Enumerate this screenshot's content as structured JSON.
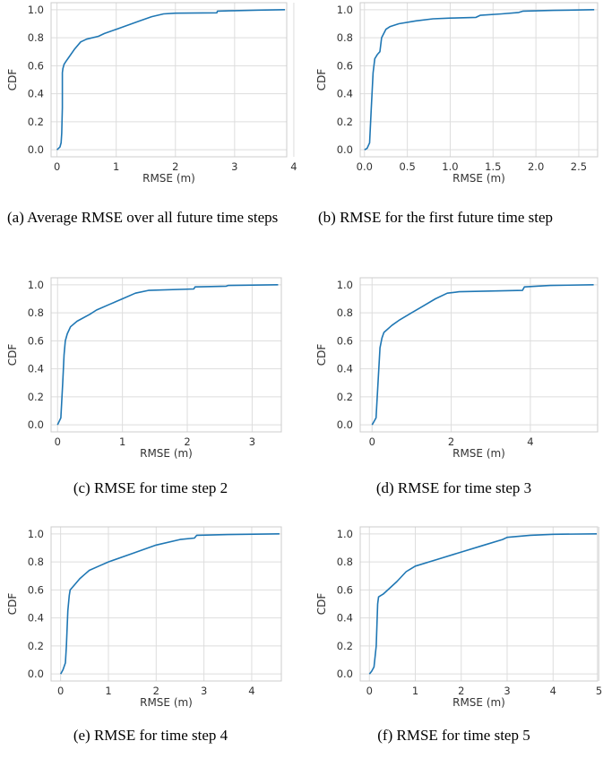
{
  "chart_data": [
    {
      "type": "line",
      "caption": "(a) Average RMSE over all future time steps",
      "xlabel": "RMSE (m)",
      "ylabel": "CDF",
      "xlim": [
        -0.1,
        3.88
      ],
      "ylim": [
        -0.05,
        1.05
      ],
      "xticks": [
        0,
        1,
        2,
        3,
        4
      ],
      "xtick_labels": [
        "0",
        "1",
        "2",
        "3",
        "4"
      ],
      "yticks": [
        0,
        0.2,
        0.4,
        0.6,
        0.8,
        1.0
      ],
      "ytick_labels": [
        "0.0",
        "0.2",
        "0.4",
        "0.6",
        "0.8",
        "1.0"
      ],
      "grid": true,
      "series": [
        {
          "color": "#1f77b4",
          "x": [
            0.0,
            0.05,
            0.07,
            0.08,
            0.09,
            0.09,
            0.1,
            0.12,
            0.15,
            0.2,
            0.3,
            0.4,
            0.5,
            0.7,
            0.8,
            1.0,
            1.2,
            1.4,
            1.6,
            1.8,
            2.0,
            2.7,
            2.71,
            3.0,
            3.4,
            3.85
          ],
          "y": [
            0.0,
            0.02,
            0.05,
            0.12,
            0.3,
            0.55,
            0.58,
            0.61,
            0.63,
            0.66,
            0.72,
            0.77,
            0.79,
            0.81,
            0.83,
            0.86,
            0.89,
            0.92,
            0.95,
            0.97,
            0.975,
            0.978,
            0.99,
            0.993,
            0.997,
            1.0
          ]
        }
      ]
    },
    {
      "type": "line",
      "caption": "(b) RMSE for the first future time step",
      "xlabel": "RMSE (m)",
      "ylabel": "CDF",
      "xlim": [
        -0.05,
        2.72
      ],
      "ylim": [
        -0.05,
        1.05
      ],
      "xticks": [
        0,
        0.5,
        1.0,
        1.5,
        2.0,
        2.5
      ],
      "xtick_labels": [
        "0.0",
        "0.5",
        "1.0",
        "1.5",
        "2.0",
        "2.5"
      ],
      "yticks": [
        0,
        0.2,
        0.4,
        0.6,
        0.8,
        1.0
      ],
      "ytick_labels": [
        "0.0",
        "0.2",
        "0.4",
        "0.6",
        "0.8",
        "1.0"
      ],
      "grid": true,
      "series": [
        {
          "color": "#1f77b4",
          "x": [
            0.0,
            0.03,
            0.06,
            0.08,
            0.1,
            0.12,
            0.15,
            0.18,
            0.2,
            0.25,
            0.3,
            0.4,
            0.6,
            0.8,
            1.0,
            1.3,
            1.35,
            1.6,
            1.8,
            1.85,
            2.2,
            2.68
          ],
          "y": [
            0.0,
            0.01,
            0.05,
            0.3,
            0.55,
            0.65,
            0.68,
            0.7,
            0.8,
            0.86,
            0.88,
            0.9,
            0.92,
            0.935,
            0.94,
            0.945,
            0.96,
            0.97,
            0.98,
            0.99,
            0.995,
            1.0
          ]
        }
      ]
    },
    {
      "type": "line",
      "caption": "(c) RMSE for time step 2",
      "xlabel": "RMSE (m)",
      "ylabel": "CDF",
      "xlim": [
        -0.1,
        3.45
      ],
      "ylim": [
        -0.05,
        1.05
      ],
      "xticks": [
        0,
        1,
        2,
        3
      ],
      "xtick_labels": [
        "0",
        "1",
        "2",
        "3"
      ],
      "yticks": [
        0,
        0.2,
        0.4,
        0.6,
        0.8,
        1.0
      ],
      "ytick_labels": [
        "0.0",
        "0.2",
        "0.4",
        "0.6",
        "0.8",
        "1.0"
      ],
      "grid": true,
      "series": [
        {
          "color": "#1f77b4",
          "x": [
            0.0,
            0.05,
            0.08,
            0.1,
            0.12,
            0.15,
            0.2,
            0.3,
            0.5,
            0.6,
            0.8,
            1.0,
            1.2,
            1.4,
            2.1,
            2.12,
            2.6,
            2.63,
            3.4
          ],
          "y": [
            0.0,
            0.05,
            0.3,
            0.5,
            0.6,
            0.65,
            0.7,
            0.74,
            0.79,
            0.82,
            0.86,
            0.9,
            0.94,
            0.96,
            0.97,
            0.985,
            0.99,
            0.995,
            1.0
          ]
        }
      ]
    },
    {
      "type": "line",
      "caption": "(d) RMSE for time step 3",
      "xlabel": "RMSE (m)",
      "ylabel": "CDF",
      "xlim": [
        -0.3,
        5.7
      ],
      "ylim": [
        -0.05,
        1.05
      ],
      "xticks": [
        0,
        2,
        4
      ],
      "xtick_labels": [
        "0",
        "2",
        "4"
      ],
      "yticks": [
        0,
        0.2,
        0.4,
        0.6,
        0.8,
        1.0
      ],
      "ytick_labels": [
        "0.0",
        "0.2",
        "0.4",
        "0.6",
        "0.8",
        "1.0"
      ],
      "grid": true,
      "series": [
        {
          "color": "#1f77b4",
          "x": [
            0.0,
            0.1,
            0.15,
            0.2,
            0.25,
            0.3,
            0.5,
            0.7,
            1.0,
            1.3,
            1.6,
            1.9,
            2.2,
            3.8,
            3.85,
            4.5,
            5.6
          ],
          "y": [
            0.0,
            0.05,
            0.3,
            0.55,
            0.62,
            0.66,
            0.71,
            0.75,
            0.8,
            0.85,
            0.9,
            0.94,
            0.95,
            0.96,
            0.985,
            0.995,
            1.0
          ]
        }
      ]
    },
    {
      "type": "line",
      "caption": "(e) RMSE for time step 4",
      "xlabel": "RMSE (m)",
      "ylabel": "CDF",
      "xlim": [
        -0.2,
        4.62
      ],
      "ylim": [
        -0.05,
        1.05
      ],
      "xticks": [
        0,
        1,
        2,
        3,
        4
      ],
      "xtick_labels": [
        "0",
        "1",
        "2",
        "3",
        "4"
      ],
      "yticks": [
        0,
        0.2,
        0.4,
        0.6,
        0.8,
        1.0
      ],
      "ytick_labels": [
        "0.0",
        "0.2",
        "0.4",
        "0.6",
        "0.8",
        "1.0"
      ],
      "grid": true,
      "series": [
        {
          "color": "#1f77b4",
          "x": [
            0.0,
            0.05,
            0.1,
            0.12,
            0.15,
            0.18,
            0.2,
            0.3,
            0.4,
            0.5,
            0.6,
            0.8,
            1.0,
            1.5,
            2.0,
            2.5,
            2.8,
            2.85,
            3.5,
            4.58
          ],
          "y": [
            0.0,
            0.03,
            0.08,
            0.2,
            0.45,
            0.56,
            0.6,
            0.64,
            0.68,
            0.71,
            0.74,
            0.77,
            0.8,
            0.86,
            0.92,
            0.96,
            0.97,
            0.99,
            0.995,
            1.0
          ]
        }
      ]
    },
    {
      "type": "line",
      "caption": "(f) RMSE for time step 5",
      "xlabel": "RMSE (m)",
      "ylabel": "CDF",
      "xlim": [
        -0.2,
        4.97
      ],
      "ylim": [
        -0.05,
        1.05
      ],
      "xticks": [
        0,
        1,
        2,
        3,
        4,
        5
      ],
      "xtick_labels": [
        "0",
        "1",
        "2",
        "3",
        "4",
        "5"
      ],
      "yticks": [
        0,
        0.2,
        0.4,
        0.6,
        0.8,
        1.0
      ],
      "ytick_labels": [
        "0.0",
        "0.2",
        "0.4",
        "0.6",
        "0.8",
        "1.0"
      ],
      "grid": true,
      "series": [
        {
          "color": "#1f77b4",
          "x": [
            0.0,
            0.05,
            0.1,
            0.15,
            0.18,
            0.2,
            0.25,
            0.3,
            0.4,
            0.6,
            0.8,
            1.0,
            1.5,
            2.0,
            2.5,
            2.9,
            3.0,
            3.5,
            4.0,
            4.95
          ],
          "y": [
            0.0,
            0.02,
            0.05,
            0.2,
            0.5,
            0.55,
            0.56,
            0.57,
            0.6,
            0.66,
            0.73,
            0.77,
            0.82,
            0.87,
            0.92,
            0.96,
            0.975,
            0.99,
            0.997,
            1.0
          ]
        }
      ]
    }
  ]
}
